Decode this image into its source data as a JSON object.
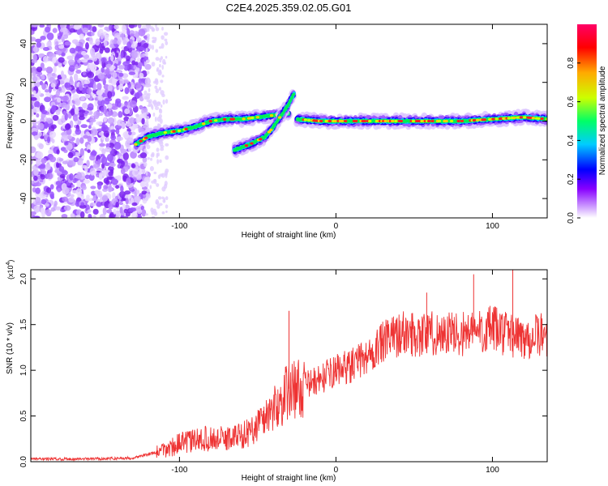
{
  "figure": {
    "title": "C2E4.2025.359.02.05.G01"
  },
  "chart_data": [
    {
      "type": "heatmap",
      "xlabel": "Height of straight line (km)",
      "ylabel": "Frequency (Hz)",
      "xlim": [
        -195,
        135
      ],
      "ylim": [
        -50,
        50
      ],
      "xticks": [
        -100,
        0,
        100
      ],
      "yticks": [
        -40,
        -20,
        0,
        20,
        40
      ],
      "grid": false,
      "colorbar": {
        "label": "Normalized spectral amplitude",
        "range": [
          0,
          1
        ],
        "ticks": [
          0.0,
          0.2,
          0.4,
          0.6,
          0.8
        ],
        "tick_labels": [
          "0.0",
          "0.2",
          "0.4",
          "0.6",
          "0.8"
        ],
        "colormap": [
          "#ffffff",
          "#cc99ff",
          "#8800ff",
          "#0000ff",
          "#00ccff",
          "#00ff66",
          "#ccff00",
          "#ffaa00",
          "#ff0000",
          "#ff0066"
        ]
      },
      "ridges": [
        {
          "x": [
            -128,
            -120,
            -110,
            -100,
            -90,
            -80,
            -70,
            -60,
            -50,
            -40,
            -30
          ],
          "y": [
            -12,
            -8,
            -6,
            -5,
            -3,
            0,
            1,
            1,
            2,
            3,
            4
          ]
        },
        {
          "x": [
            -65,
            -55,
            -45,
            -40,
            -35,
            -30,
            -27
          ],
          "y": [
            -15,
            -12,
            -8,
            -3,
            3,
            9,
            14
          ]
        },
        {
          "x": [
            -25,
            -10,
            0,
            10,
            20,
            40,
            60,
            80,
            100,
            120,
            135
          ],
          "y": [
            1,
            0,
            0,
            0,
            0,
            0,
            0,
            0,
            1,
            2,
            1
          ]
        }
      ]
    },
    {
      "type": "line",
      "xlabel": "Height of straight line (km)",
      "ylabel": "SNR (10 * v/v)",
      "exponent_label": "(x10",
      "exponent_power": "4",
      "exponent_close": ")",
      "xlim": [
        -195,
        135
      ],
      "ylim": [
        0,
        2.1
      ],
      "xticks": [
        -100,
        0,
        100
      ],
      "yticks": [
        0.0,
        0.5,
        1.0,
        1.5,
        2.0
      ],
      "ytick_labels": [
        "0.0",
        "0.5",
        "1.0",
        "1.5",
        "2.0"
      ],
      "grid": false,
      "color": "#ee3333",
      "series": [
        {
          "x": [
            -195,
            -160,
            -130,
            -110,
            -100,
            -85,
            -70,
            -55,
            -45,
            -35,
            -30,
            -26,
            -22,
            -18,
            -10,
            0,
            10,
            20,
            30,
            40,
            60,
            80,
            100,
            120,
            135
          ],
          "y": [
            0.03,
            0.03,
            0.04,
            0.12,
            0.2,
            0.25,
            0.25,
            0.32,
            0.5,
            0.65,
            0.8,
            0.8,
            0.8,
            0.85,
            0.9,
            1.0,
            1.05,
            1.15,
            1.3,
            1.4,
            1.4,
            1.4,
            1.45,
            1.35,
            1.4
          ]
        }
      ],
      "spikes": [
        {
          "x": -30,
          "y": 1.65
        },
        {
          "x": 58,
          "y": 1.85
        },
        {
          "x": 88,
          "y": 2.05
        },
        {
          "x": 113,
          "y": 2.1
        }
      ]
    }
  ]
}
